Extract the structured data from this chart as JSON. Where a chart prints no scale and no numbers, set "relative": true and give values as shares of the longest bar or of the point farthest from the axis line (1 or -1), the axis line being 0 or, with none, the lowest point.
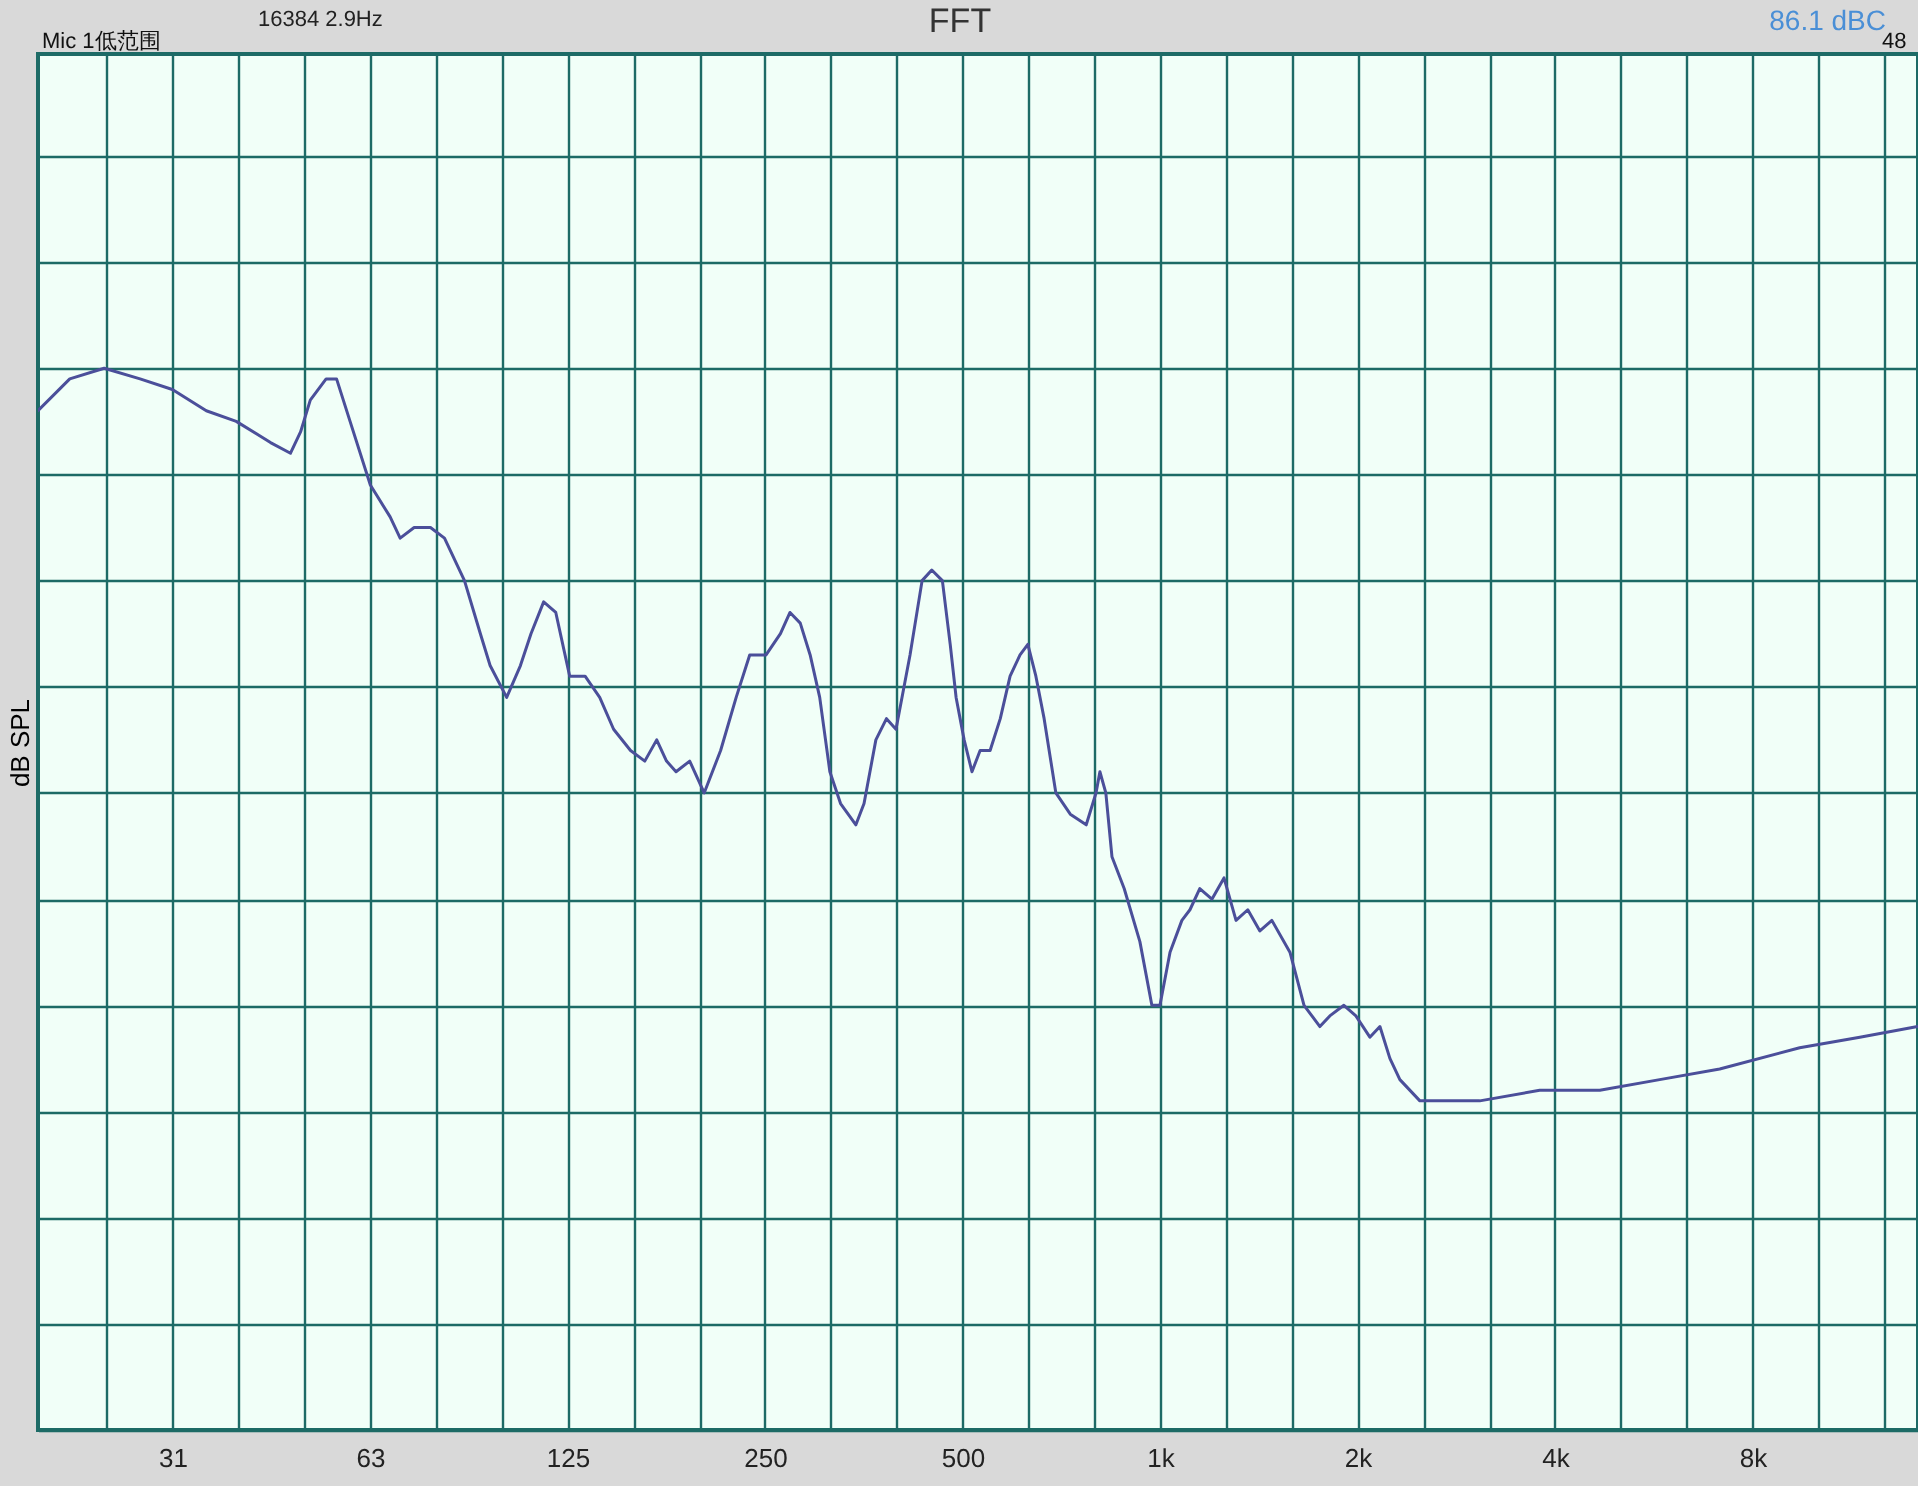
{
  "chart_data": {
    "type": "line",
    "title": "FFT",
    "ylabel": "dB SPL",
    "relative": true,
    "log": "x",
    "grid": true,
    "marker": "none",
    "line_style": "solid",
    "annotations": [
      "16384  2.9Hz",
      "Mic 1低范围",
      "86.1 dBC",
      "48"
    ],
    "xlim": [
      19.5,
      14300
    ],
    "xticks": [
      {
        "value": 24.8,
        "label": null
      },
      {
        "value": 31.25,
        "label": "31"
      },
      {
        "value": 39.4,
        "label": null
      },
      {
        "value": 49.6,
        "label": null
      },
      {
        "value": 62.5,
        "label": "63"
      },
      {
        "value": 78.7,
        "label": null
      },
      {
        "value": 99.2,
        "label": null
      },
      {
        "value": 125,
        "label": "125"
      },
      {
        "value": 157.5,
        "label": null
      },
      {
        "value": 198.4,
        "label": null
      },
      {
        "value": 250,
        "label": "250"
      },
      {
        "value": 315,
        "label": null
      },
      {
        "value": 396.9,
        "label": null
      },
      {
        "value": 500,
        "label": "500"
      },
      {
        "value": 630,
        "label": null
      },
      {
        "value": 793.7,
        "label": null
      },
      {
        "value": 1000,
        "label": "1k"
      },
      {
        "value": 1260,
        "label": null
      },
      {
        "value": 1587,
        "label": null
      },
      {
        "value": 2000,
        "label": "2k"
      },
      {
        "value": 2520,
        "label": null
      },
      {
        "value": 3175,
        "label": null
      },
      {
        "value": 4000,
        "label": "4k"
      },
      {
        "value": 5040,
        "label": null
      },
      {
        "value": 6350,
        "label": null
      },
      {
        "value": 8000,
        "label": "8k"
      },
      {
        "value": 10080,
        "label": null
      },
      {
        "value": 12700,
        "label": null
      }
    ],
    "x": [
      19.5,
      21.8,
      24.6,
      27.9,
      31.25,
      35.2,
      39.1,
      44.1,
      47.3,
      49.0,
      50.7,
      53.6,
      55.6,
      58.3,
      62.6,
      67.1,
      69.5,
      73.0,
      77.3,
      81.2,
      87.1,
      92.1,
      95.3,
      101,
      106,
      110,
      115,
      120,
      126,
      133,
      140,
      147,
      156,
      164,
      171,
      177,
      183,
      192,
      202,
      214,
      226,
      237,
      251,
      264,
      273,
      283,
      293,
      303,
      314,
      326,
      344,
      354,
      369,
      383,
      396,
      416,
      434,
      449,
      466,
      479,
      489,
      503,
      517,
      532,
      551,
      571,
      591,
      612,
      629,
      647,
      666,
      694,
      730,
      772,
      799,
      810,
      827,
      845,
      882,
      932,
      972,
      1000,
      1036,
      1080,
      1111,
      1150,
      1200,
      1252,
      1306,
      1361,
      1420,
      1481,
      1578,
      1658,
      1753,
      1815,
      1907,
      1989,
      2089,
      2164,
      2241,
      2321,
      2490,
      2670,
      3072,
      3791,
      4682,
      5776,
      7131,
      9441,
      11660,
      14280
    ],
    "series": [
      {
        "color": "#4b4f9a",
        "values": [
          0.96,
          0.99,
          1.0,
          0.99,
          0.98,
          0.96,
          0.95,
          0.93,
          0.92,
          0.94,
          0.97,
          0.99,
          0.99,
          0.95,
          0.89,
          0.86,
          0.84,
          0.85,
          0.85,
          0.84,
          0.8,
          0.75,
          0.72,
          0.69,
          0.72,
          0.75,
          0.78,
          0.77,
          0.71,
          0.71,
          0.69,
          0.66,
          0.64,
          0.63,
          0.65,
          0.63,
          0.62,
          0.63,
          0.6,
          0.64,
          0.69,
          0.73,
          0.73,
          0.75,
          0.77,
          0.76,
          0.73,
          0.69,
          0.62,
          0.59,
          0.57,
          0.59,
          0.65,
          0.67,
          0.66,
          0.73,
          0.8,
          0.81,
          0.8,
          0.74,
          0.69,
          0.65,
          0.62,
          0.64,
          0.64,
          0.67,
          0.71,
          0.73,
          0.74,
          0.71,
          0.67,
          0.6,
          0.58,
          0.57,
          0.6,
          0.62,
          0.6,
          0.54,
          0.51,
          0.46,
          0.4,
          0.4,
          0.45,
          0.48,
          0.49,
          0.51,
          0.5,
          0.52,
          0.48,
          0.49,
          0.47,
          0.48,
          0.45,
          0.4,
          0.38,
          0.39,
          0.4,
          0.39,
          0.37,
          0.38,
          0.35,
          0.33,
          0.31,
          0.31,
          0.31,
          0.32,
          0.32,
          0.33,
          0.34,
          0.36,
          0.37,
          0.38
        ]
      }
    ]
  }
}
